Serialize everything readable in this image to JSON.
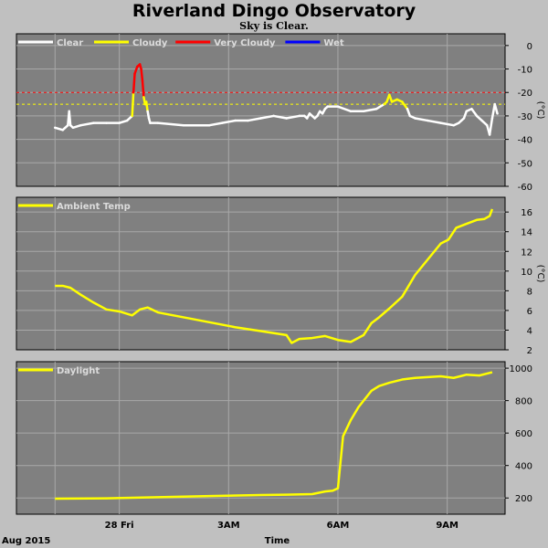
{
  "header": {
    "title": "Riverland Dingo Observatory",
    "subtitle": "Sky is Clear."
  },
  "footer": {
    "date_label": "Aug 2015",
    "time_label": "Time"
  },
  "chart_data": [
    {
      "type": "line",
      "name": "cloud",
      "ylabel": "(°C)",
      "ylim": [
        -60,
        5
      ],
      "yticks": [
        0,
        -10,
        -20,
        -30,
        -40,
        -50,
        -60
      ],
      "grid": true,
      "legend_position": "top-left",
      "legend": [
        {
          "label": "Clear",
          "color": "#ffffff"
        },
        {
          "label": "Cloudy",
          "color": "#ffff00"
        },
        {
          "label": "Very Cloudy",
          "color": "#ff0000"
        },
        {
          "label": "Wet",
          "color": "#0000ff"
        }
      ],
      "threshold_lines": [
        {
          "value": -20,
          "color": "#ff0000"
        },
        {
          "value": -25,
          "color": "#ffff00"
        }
      ],
      "x_hours": [
        0,
        0.3,
        0.5,
        0.55,
        0.6,
        0.7,
        1,
        1.5,
        2,
        2.5,
        2.8,
        3,
        3.05,
        3.1,
        3.2,
        3.3,
        3.35,
        3.4,
        3.45,
        3.5,
        3.55,
        3.6,
        3.65,
        3.7,
        4,
        5,
        6,
        6.5,
        7,
        7.5,
        8,
        8.5,
        9,
        9.5,
        9.7,
        9.8,
        9.9,
        10,
        10.1,
        10.2,
        10.3,
        10.4,
        10.5,
        10.6,
        11,
        11.5,
        12,
        12.5,
        12.8,
        12.9,
        13,
        13.1,
        13.3,
        13.5,
        13.7,
        13.8,
        14,
        14.5,
        15,
        15.5,
        15.7,
        15.8,
        15.9,
        16,
        16.2,
        16.4,
        16.6,
        16.8,
        16.9,
        17,
        17.1,
        17.2
      ],
      "series": [
        {
          "values": [
            -35,
            -36,
            -34,
            -28,
            -34,
            -35,
            -34,
            -33,
            -33,
            -33,
            -32,
            -30,
            -20,
            -12,
            -9,
            -8,
            -10,
            -15,
            -22,
            -25,
            -24,
            -28,
            -31,
            -33,
            -33,
            -34,
            -34,
            -33,
            -32,
            -32,
            -31,
            -30,
            -31,
            -30,
            -30,
            -31,
            -29,
            -30,
            -31,
            -30,
            -28,
            -29,
            -27,
            -26,
            -26,
            -28,
            -28,
            -27,
            -25,
            -24,
            -21,
            -24,
            -23,
            -24,
            -27,
            -30,
            -31,
            -32,
            -33,
            -34,
            -33,
            -32,
            -31,
            -28,
            -27,
            -30,
            -32,
            -34,
            -38,
            -31,
            -25,
            -29
          ]
        }
      ]
    },
    {
      "type": "line",
      "name": "ambient",
      "ylabel": "(°C)",
      "ylim": [
        2,
        17.5
      ],
      "yticks": [
        2,
        4,
        6,
        8,
        10,
        12,
        14,
        16
      ],
      "grid": true,
      "legend_position": "top-left",
      "legend": [
        {
          "label": "Ambient Temp",
          "color": "#ffff00"
        }
      ],
      "x_hours": [
        0,
        0.3,
        0.6,
        1,
        1.5,
        2,
        2.5,
        3,
        3.3,
        3.6,
        4,
        5,
        6,
        7,
        8,
        9,
        9.2,
        9.5,
        10,
        10.5,
        11,
        11.5,
        12,
        12.3,
        12.6,
        13,
        13.5,
        14,
        14.5,
        15,
        15.3,
        15.6,
        16,
        16.4,
        16.7,
        16.9,
        17
      ],
      "series": [
        {
          "values": [
            8.5,
            8.5,
            8.3,
            7.6,
            6.8,
            6.1,
            5.9,
            5.5,
            6.1,
            6.3,
            5.8,
            5.3,
            4.8,
            4.3,
            3.9,
            3.5,
            2.7,
            3.1,
            3.2,
            3.4,
            3.0,
            2.8,
            3.5,
            4.7,
            5.3,
            6.2,
            7.4,
            9.6,
            11.2,
            12.8,
            13.2,
            14.4,
            14.8,
            15.2,
            15.3,
            15.6,
            16.3
          ]
        }
      ]
    },
    {
      "type": "line",
      "name": "daylight",
      "ylim": [
        100,
        1040
      ],
      "yticks": [
        200,
        400,
        600,
        800,
        1000
      ],
      "grid": true,
      "legend_position": "top-left",
      "legend": [
        {
          "label": "Daylight",
          "color": "#ffff00"
        }
      ],
      "x_hours": [
        0,
        2,
        4,
        6,
        8,
        9,
        10,
        10.5,
        10.8,
        11,
        11.2,
        11.5,
        11.8,
        12,
        12.3,
        12.6,
        13,
        13.5,
        14,
        14.5,
        15,
        15.5,
        16,
        16.5,
        17
      ],
      "series": [
        {
          "values": [
            196,
            198,
            205,
            212,
            218,
            220,
            224,
            240,
            245,
            260,
            580,
            680,
            760,
            800,
            860,
            890,
            910,
            930,
            940,
            945,
            950,
            940,
            960,
            955,
            975
          ]
        }
      ],
      "xticks": [
        {
          "hour": 2.5,
          "label": "28 Fri"
        },
        {
          "hour": 6.75,
          "label": "3AM"
        },
        {
          "hour": 11.0,
          "label": "6AM"
        },
        {
          "hour": 15.25,
          "label": "9AM"
        }
      ]
    }
  ]
}
